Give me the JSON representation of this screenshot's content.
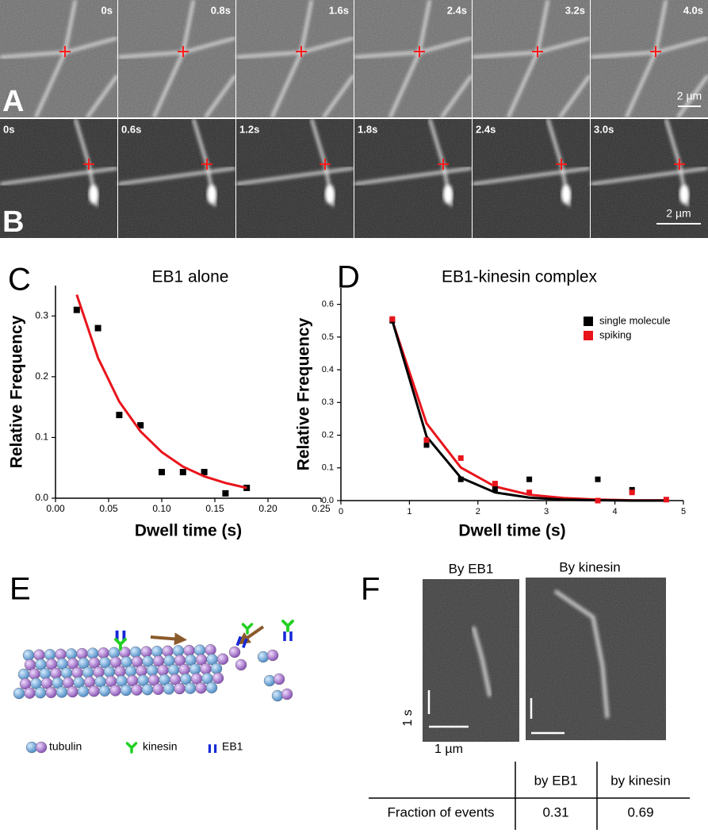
{
  "panels": {
    "A": {
      "letter": "A",
      "times": [
        "0s",
        "0.8s",
        "1.6s",
        "2.4s",
        "3.2s",
        "4.0s"
      ],
      "scale_bar": "2 µm"
    },
    "B": {
      "letter": "B",
      "times": [
        "0s",
        "0.6s",
        "1.2s",
        "1.8s",
        "2.4s",
        "3.0s"
      ],
      "scale_bar": "2 µm"
    },
    "E": {
      "letter": "E",
      "legend": [
        "tubulin",
        "kinesin",
        "EB1"
      ]
    },
    "F": {
      "letter": "F",
      "kymographs": [
        "By EB1",
        "By kinesin"
      ],
      "time_scale": "1 s",
      "length_scale": "1 µm",
      "table": {
        "header": [
          "by EB1",
          "by kinesin"
        ],
        "rows": [
          [
            "Fraction of events",
            0.31,
            0.69
          ]
        ]
      }
    }
  },
  "chart_data": [
    {
      "type": "scatter",
      "panel_label": "C",
      "title": "EB1 alone",
      "x_label": "Dwell time (s)",
      "y_label": "Relative Frequency",
      "xlim": [
        0,
        0.25
      ],
      "ylim": [
        0,
        0.35
      ],
      "xticks": [
        {
          "value": 0,
          "label": "0.00"
        },
        {
          "value": 0.05,
          "label": "0.05"
        },
        {
          "value": 0.1,
          "label": "0.10"
        },
        {
          "value": 0.15,
          "label": "0.15"
        },
        {
          "value": 0.2,
          "label": "0.20"
        },
        {
          "value": 0.25,
          "label": "0.25"
        }
      ],
      "yticks": [
        {
          "value": 0,
          "label": "0.0"
        },
        0.1,
        0.2,
        0.3
      ],
      "series": [
        {
          "type": "scatter",
          "color": "#000000",
          "x": [
            0.02,
            0.04,
            0.06,
            0.08,
            0.1,
            0.12,
            0.14,
            0.16,
            0.18
          ],
          "values": [
            0.31,
            0.28,
            0.137,
            0.12,
            0.043,
            0.043,
            0.043,
            0.008,
            0.017
          ]
        },
        {
          "type": "line",
          "color": "#e8141b",
          "x": [
            0.02,
            0.04,
            0.06,
            0.08,
            0.1,
            0.12,
            0.14,
            0.16,
            0.18
          ],
          "values": [
            0.335,
            0.231,
            0.159,
            0.11,
            0.076,
            0.052,
            0.036,
            0.025,
            0.017
          ]
        }
      ]
    },
    {
      "type": "scatter",
      "panel_label": "D",
      "title": "EB1-kinesin complex",
      "x_label": "Dwell time (s)",
      "y_label": "Relative Frequency",
      "xlim": [
        0,
        5
      ],
      "ylim": [
        0,
        0.65
      ],
      "xticks": [
        0,
        1,
        2,
        3,
        4,
        5
      ],
      "yticks": [
        {
          "value": 0,
          "label": "0.0"
        },
        0.1,
        0.2,
        0.3,
        0.4,
        0.5,
        0.6
      ],
      "legend": "upper right",
      "series": [
        {
          "type": "line",
          "color": "#e8141b",
          "x": [
            0.75,
            1.25,
            1.75,
            2.25,
            2.75,
            3.25,
            3.75,
            4.25,
            4.75
          ],
          "values": [
            0.55,
            0.236,
            0.101,
            0.043,
            0.018,
            0.008,
            0.003,
            0.001,
            0.001
          ]
        },
        {
          "type": "line",
          "color": "#000000",
          "x": [
            0.75,
            1.25,
            1.75,
            2.25,
            2.75,
            3.25,
            3.75,
            4.25,
            4.75
          ],
          "values": [
            0.55,
            0.196,
            0.07,
            0.025,
            0.009,
            0.003,
            0.001,
            0.0,
            0.0
          ]
        },
        {
          "type": "scatter",
          "name": "single molecule",
          "color": "#000000",
          "x": [
            0.75,
            1.25,
            1.75,
            2.25,
            2.75,
            3.75,
            4.25
          ],
          "values": [
            0.55,
            0.17,
            0.065,
            0.035,
            0.065,
            0.065,
            0.033
          ]
        },
        {
          "type": "scatter",
          "name": "spiking",
          "color": "#e8141b",
          "x": [
            0.75,
            1.25,
            1.75,
            2.25,
            2.75,
            3.75,
            4.25,
            4.75
          ],
          "values": [
            0.555,
            0.185,
            0.13,
            0.052,
            0.025,
            0.0,
            0.025,
            0.003
          ]
        }
      ]
    }
  ]
}
